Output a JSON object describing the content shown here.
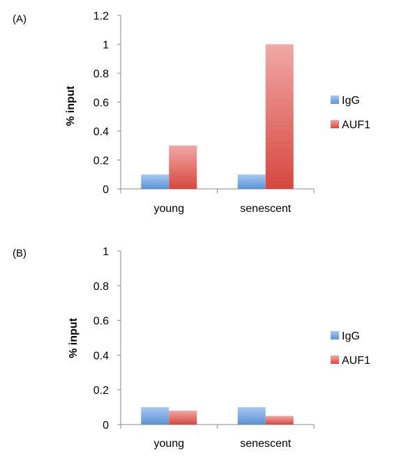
{
  "colors": {
    "IgG": "#6a9fd8",
    "AUF1": "#d9534f"
  },
  "chart_data": [
    {
      "type": "bar",
      "panel_label": "(A)",
      "categories": [
        "young",
        "senescent"
      ],
      "series": [
        {
          "name": "IgG",
          "values": [
            0.1,
            0.1
          ]
        },
        {
          "name": "AUF1",
          "values": [
            0.3,
            1.0
          ]
        }
      ],
      "ylabel": "% input",
      "ylim": [
        0,
        1.2
      ],
      "yticks": [
        "0",
        "0.2",
        "0.4",
        "0.6",
        "0.8",
        "1",
        "1.2"
      ],
      "yticks_values": [
        0,
        0.2,
        0.4,
        0.6,
        0.8,
        1.0,
        1.2
      ],
      "legend": "right",
      "grid": false
    },
    {
      "type": "bar",
      "panel_label": "(B)",
      "categories": [
        "young",
        "senescent"
      ],
      "series": [
        {
          "name": "IgG",
          "values": [
            0.1,
            0.1
          ]
        },
        {
          "name": "AUF1",
          "values": [
            0.08,
            0.05
          ]
        }
      ],
      "ylabel": "% input",
      "ylim": [
        0,
        1
      ],
      "yticks": [
        "0",
        "0.2",
        "0.4",
        "0.6",
        "0.8",
        "1"
      ],
      "yticks_values": [
        0,
        0.2,
        0.4,
        0.6,
        0.8,
        1.0
      ],
      "legend": "right",
      "grid": false
    }
  ]
}
